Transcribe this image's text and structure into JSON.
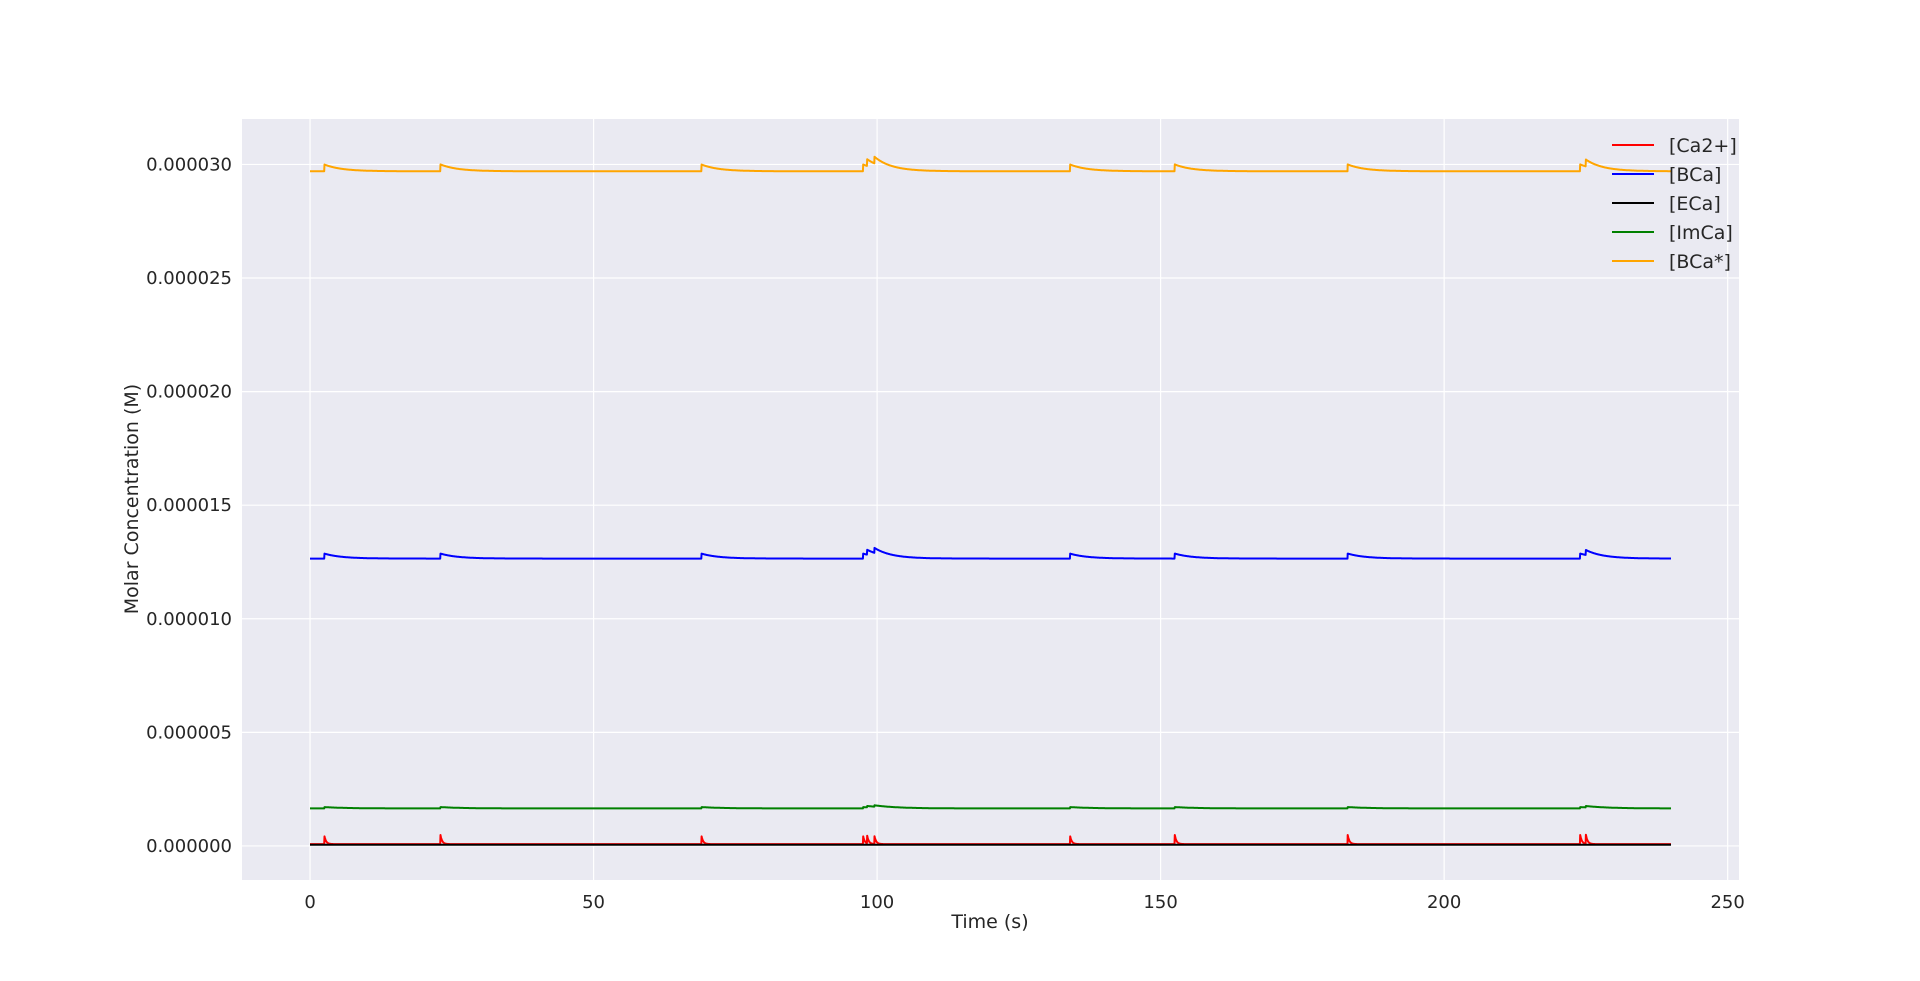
{
  "chart_data": {
    "type": "line",
    "title": "",
    "xlabel": "Time (s)",
    "ylabel": "Molar Concentration (M)",
    "xlim": [
      -12,
      252
    ],
    "ylim": [
      -1.5e-06,
      3.2e-05
    ],
    "xticks": [
      0,
      50,
      100,
      150,
      200,
      250
    ],
    "xtick_labels": [
      "0",
      "50",
      "100",
      "150",
      "200",
      "250"
    ],
    "yticks": [
      0,
      5e-06,
      1e-05,
      1.5e-05,
      2e-05,
      2.5e-05,
      3e-05
    ],
    "ytick_labels": [
      "0.000000",
      "0.000005",
      "0.000010",
      "0.000015",
      "0.000020",
      "0.000025",
      "0.000030"
    ],
    "grid": true,
    "legend_position": "top-right",
    "x_range": [
      0,
      240
    ],
    "event_times": [
      2.5,
      23,
      69,
      97.5,
      98.2,
      99.5,
      134,
      152.5,
      183,
      224,
      225
    ],
    "series": [
      {
        "name": "[Ca2+]",
        "color": "#ff0000",
        "baseline": 8e-08,
        "spike": 4e-07,
        "decay_tau": 0.3
      },
      {
        "name": "[BCa]",
        "color": "#0000ff",
        "baseline": 1.265e-05,
        "spike": 2.2e-07,
        "decay_tau": 3
      },
      {
        "name": "[ECa]",
        "color": "#000000",
        "baseline": 5e-08,
        "spike": 0.0,
        "decay_tau": 1
      },
      {
        "name": "[ImCa]",
        "color": "#008000",
        "baseline": 1.65e-06,
        "spike": 6e-08,
        "decay_tau": 4
      },
      {
        "name": "[BCa*]",
        "color": "#ffa500",
        "baseline": 2.97e-05,
        "spike": 3e-07,
        "decay_tau": 3
      }
    ]
  }
}
